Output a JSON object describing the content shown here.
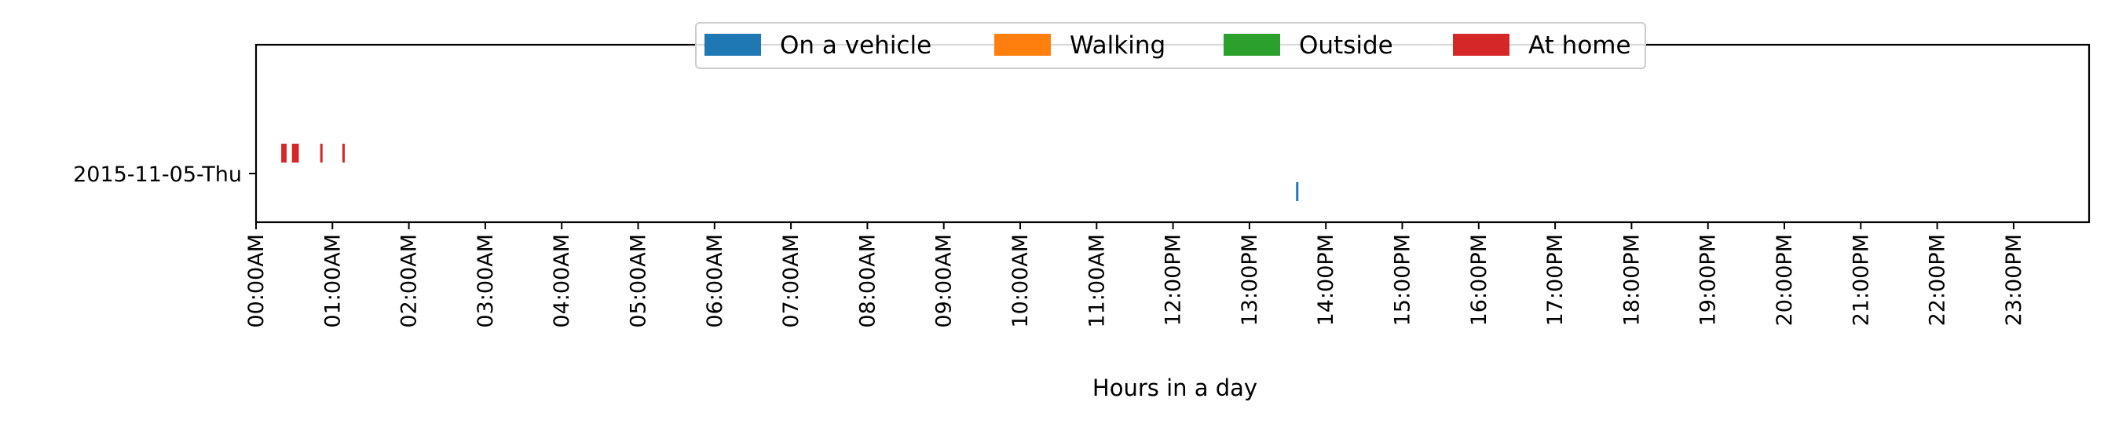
{
  "chart_data": {
    "type": "timeline",
    "xlabel": "Hours in a day",
    "x_unit": "hour of day",
    "xlim": [
      0,
      24
    ],
    "x_tick_labels": [
      "00:00AM",
      "01:00AM",
      "02:00AM",
      "03:00AM",
      "04:00AM",
      "05:00AM",
      "06:00AM",
      "07:00AM",
      "08:00AM",
      "09:00AM",
      "10:00AM",
      "11:00AM",
      "12:00PM",
      "13:00PM",
      "14:00PM",
      "15:00PM",
      "16:00PM",
      "17:00PM",
      "18:00PM",
      "19:00PM",
      "20:00PM",
      "21:00PM",
      "22:00PM",
      "23:00PM"
    ],
    "categories": [
      "2015-11-05-Thu"
    ],
    "legend_position": "top-center",
    "grid": false,
    "series": [
      {
        "name": "On a vehicle",
        "color": "#1f77b4",
        "events": [
          {
            "category": "2015-11-05-Thu",
            "start": 13.61,
            "end": 13.64
          }
        ]
      },
      {
        "name": "Walking",
        "color": "#ff7f0e",
        "events": []
      },
      {
        "name": "Outside",
        "color": "#2ca02c",
        "events": []
      },
      {
        "name": "At home",
        "color": "#d62728",
        "events": [
          {
            "category": "2015-11-05-Thu",
            "start": 0.33,
            "end": 0.4
          },
          {
            "category": "2015-11-05-Thu",
            "start": 0.47,
            "end": 0.56
          },
          {
            "category": "2015-11-05-Thu",
            "start": 0.84,
            "end": 0.87
          },
          {
            "category": "2015-11-05-Thu",
            "start": 1.13,
            "end": 1.16
          }
        ]
      }
    ]
  }
}
